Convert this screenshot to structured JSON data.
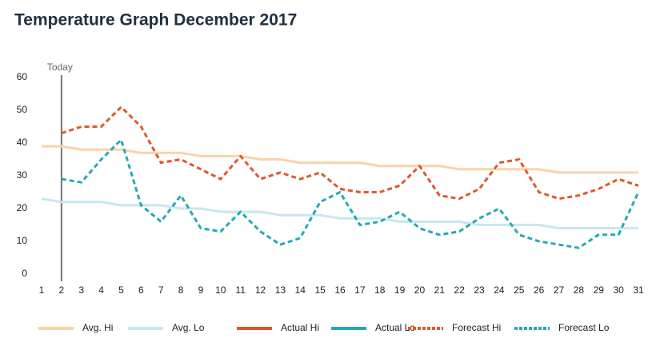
{
  "chart_data": {
    "type": "line",
    "title": "Temperature Graph December 2017",
    "categories": [
      "1",
      "2",
      "3",
      "4",
      "5",
      "6",
      "7",
      "8",
      "9",
      "10",
      "11",
      "12",
      "13",
      "14",
      "15",
      "16",
      "17",
      "18",
      "19",
      "20",
      "21",
      "22",
      "23",
      "24",
      "25",
      "26",
      "27",
      "28",
      "29",
      "30",
      "31"
    ],
    "ylim": [
      0,
      60
    ],
    "yticks": [
      0,
      10,
      20,
      30,
      40,
      50,
      60
    ],
    "annotations": [
      {
        "text": "Today",
        "x": "2"
      }
    ],
    "series": [
      {
        "name": "Avg. Hi",
        "color": "#fad3ab",
        "style": "solid",
        "values": [
          39,
          39,
          38,
          38,
          38,
          37,
          37,
          37,
          36,
          36,
          36,
          35,
          35,
          34,
          34,
          34,
          34,
          33,
          33,
          33,
          33,
          32,
          32,
          32,
          32,
          32,
          31,
          31,
          31,
          31,
          31
        ]
      },
      {
        "name": "Avg. Lo",
        "color": "#c6e7ef",
        "style": "solid",
        "values": [
          23,
          22,
          22,
          22,
          21,
          21,
          21,
          20,
          20,
          19,
          19,
          19,
          18,
          18,
          18,
          17,
          17,
          17,
          16,
          16,
          16,
          16,
          15,
          15,
          15,
          15,
          14,
          14,
          14,
          14,
          14
        ]
      },
      {
        "name": "Actual Hi",
        "color": "#e0582a",
        "style": "solid",
        "values": [
          null,
          null,
          null,
          null,
          null,
          null,
          null,
          null,
          null,
          null,
          null,
          null,
          null,
          null,
          null,
          null,
          null,
          null,
          null,
          null,
          null,
          null,
          null,
          null,
          null,
          null,
          null,
          null,
          null,
          null,
          null
        ]
      },
      {
        "name": "Actual Lo",
        "color": "#25a9b5",
        "style": "solid",
        "values": [
          null,
          null,
          null,
          null,
          null,
          null,
          null,
          null,
          null,
          null,
          null,
          null,
          null,
          null,
          null,
          null,
          null,
          null,
          null,
          null,
          null,
          null,
          null,
          null,
          null,
          null,
          null,
          null,
          null,
          null,
          null
        ]
      },
      {
        "name": "Forecast Hi",
        "color": "#e0582a",
        "style": "dashed",
        "values": [
          null,
          43,
          45,
          45,
          51,
          45,
          34,
          35,
          32,
          29,
          36,
          29,
          31,
          29,
          31,
          26,
          25,
          25,
          27,
          33,
          24,
          23,
          26,
          34,
          35,
          25,
          23,
          24,
          26,
          29,
          27
        ]
      },
      {
        "name": "Forecast Lo",
        "color": "#25a9b5",
        "style": "dashed",
        "values": [
          null,
          29,
          28,
          35,
          41,
          21,
          16,
          24,
          14,
          13,
          19,
          13,
          9,
          11,
          22,
          25,
          15,
          16,
          19,
          14,
          12,
          13,
          17,
          20,
          12,
          10,
          9,
          8,
          12,
          12,
          25
        ]
      }
    ]
  }
}
